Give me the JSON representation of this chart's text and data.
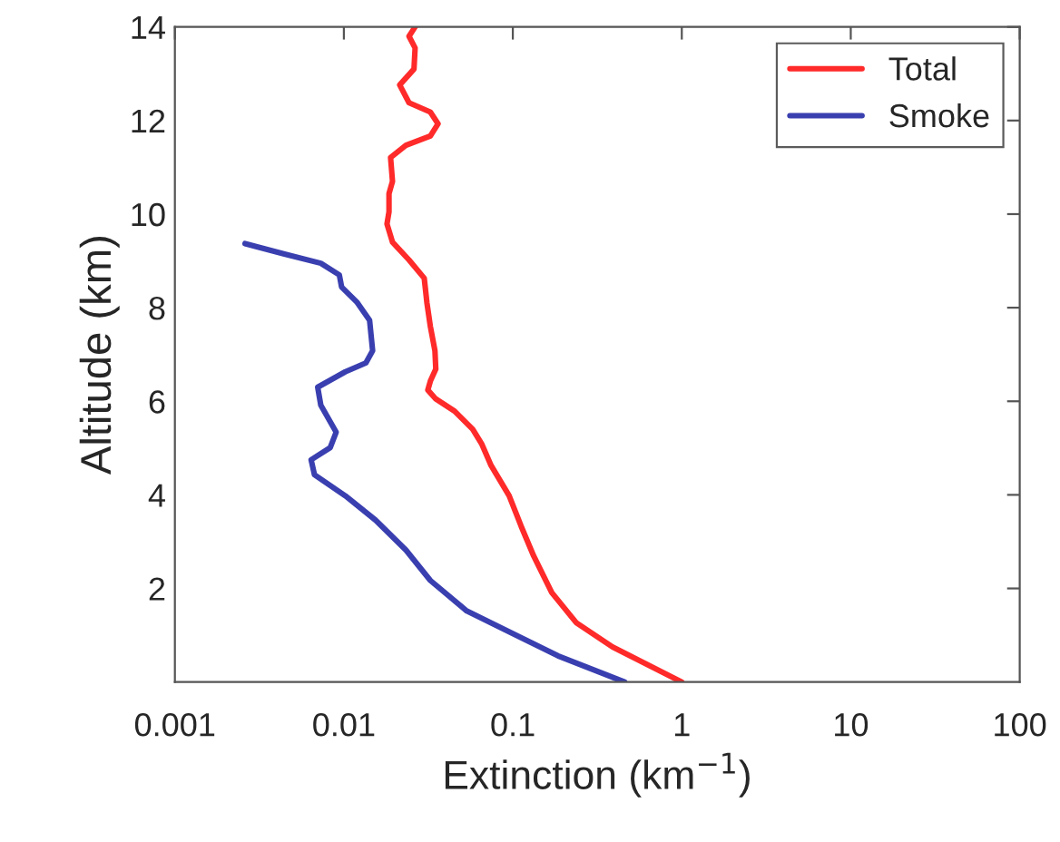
{
  "chart_data": {
    "type": "line",
    "xlabel": "Extinction (km$^{−1}$)",
    "ylabel": "Altitude (km)",
    "log": "x",
    "xlim": [
      0.001,
      100
    ],
    "xticks": [
      0.001,
      0.01,
      0.1,
      1,
      10,
      100
    ],
    "ylim": [
      0,
      14
    ],
    "yticks": [
      2,
      4,
      6,
      8,
      10,
      12,
      14
    ],
    "legend": "top right",
    "grid": false,
    "series": [
      {
        "name": "Total",
        "color": "#ff2a2a",
        "x": [
          0.0264,
          0.0243,
          0.0264,
          0.026,
          0.0214,
          0.0243,
          0.0325,
          0.0361,
          0.0325,
          0.0233,
          0.0189,
          0.0194,
          0.0185,
          0.0185,
          0.018,
          0.0194,
          0.0243,
          0.0299,
          0.031,
          0.0325,
          0.0346,
          0.035,
          0.0325,
          0.0314,
          0.035,
          0.0452,
          0.0579,
          0.0656,
          0.0743,
          0.0951,
          0.112,
          0.133,
          0.17,
          0.237,
          0.389,
          1.0
        ],
        "values": [
          14,
          13.8,
          13.55,
          13.1,
          12.76,
          12.38,
          12.18,
          11.93,
          11.67,
          11.47,
          11.21,
          10.7,
          10.44,
          10.05,
          9.79,
          9.4,
          9.02,
          8.63,
          8.11,
          7.6,
          7.08,
          6.69,
          6.43,
          6.24,
          6.05,
          5.79,
          5.4,
          5.08,
          4.63,
          3.98,
          3.33,
          2.69,
          1.91,
          1.27,
          0.75,
          0
        ]
      },
      {
        "name": "Smoke",
        "color": "#3a3fb0",
        "x": [
          0.0026,
          0.0044,
          0.0073,
          0.0094,
          0.0097,
          0.012,
          0.0142,
          0.0148,
          0.0135,
          0.0102,
          0.007,
          0.0073,
          0.009,
          0.0083,
          0.0064,
          0.0067,
          0.0102,
          0.0154,
          0.0233,
          0.0325,
          0.0533,
          0.103,
          0.185,
          0.459
        ],
        "values": [
          9.37,
          9.15,
          8.95,
          8.7,
          8.44,
          8.11,
          7.73,
          7.08,
          6.82,
          6.63,
          6.3,
          5.92,
          5.34,
          5.01,
          4.75,
          4.43,
          3.98,
          3.46,
          2.82,
          2.17,
          1.52,
          1.01,
          0.56,
          0
        ]
      }
    ]
  }
}
